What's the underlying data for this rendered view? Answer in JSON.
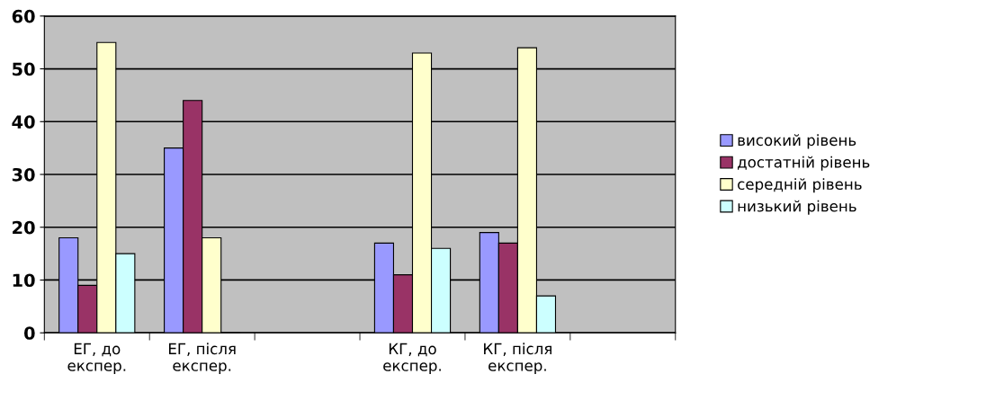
{
  "chart_data": {
    "type": "bar",
    "categories": [
      "ЕГ, до експер.",
      "ЕГ, після експер.",
      null,
      "КГ, до експер.",
      "КГ, після експер.",
      null
    ],
    "series": [
      {
        "name": "високий рівень",
        "color": "#9999ff",
        "values": [
          18,
          35,
          null,
          17,
          19,
          null
        ]
      },
      {
        "name": "достатній рівень",
        "color": "#993366",
        "values": [
          9,
          44,
          null,
          11,
          17,
          null
        ]
      },
      {
        "name": "середній рівень",
        "color": "#ffffcc",
        "values": [
          55,
          18,
          null,
          53,
          54,
          null
        ]
      },
      {
        "name": "низький рівень",
        "color": "#ccffff",
        "values": [
          15,
          0,
          null,
          16,
          7,
          null
        ]
      }
    ],
    "ylim": [
      0,
      60
    ],
    "yticks": [
      0,
      10,
      20,
      30,
      40,
      50,
      60
    ],
    "grid": "y",
    "legend": "right"
  }
}
